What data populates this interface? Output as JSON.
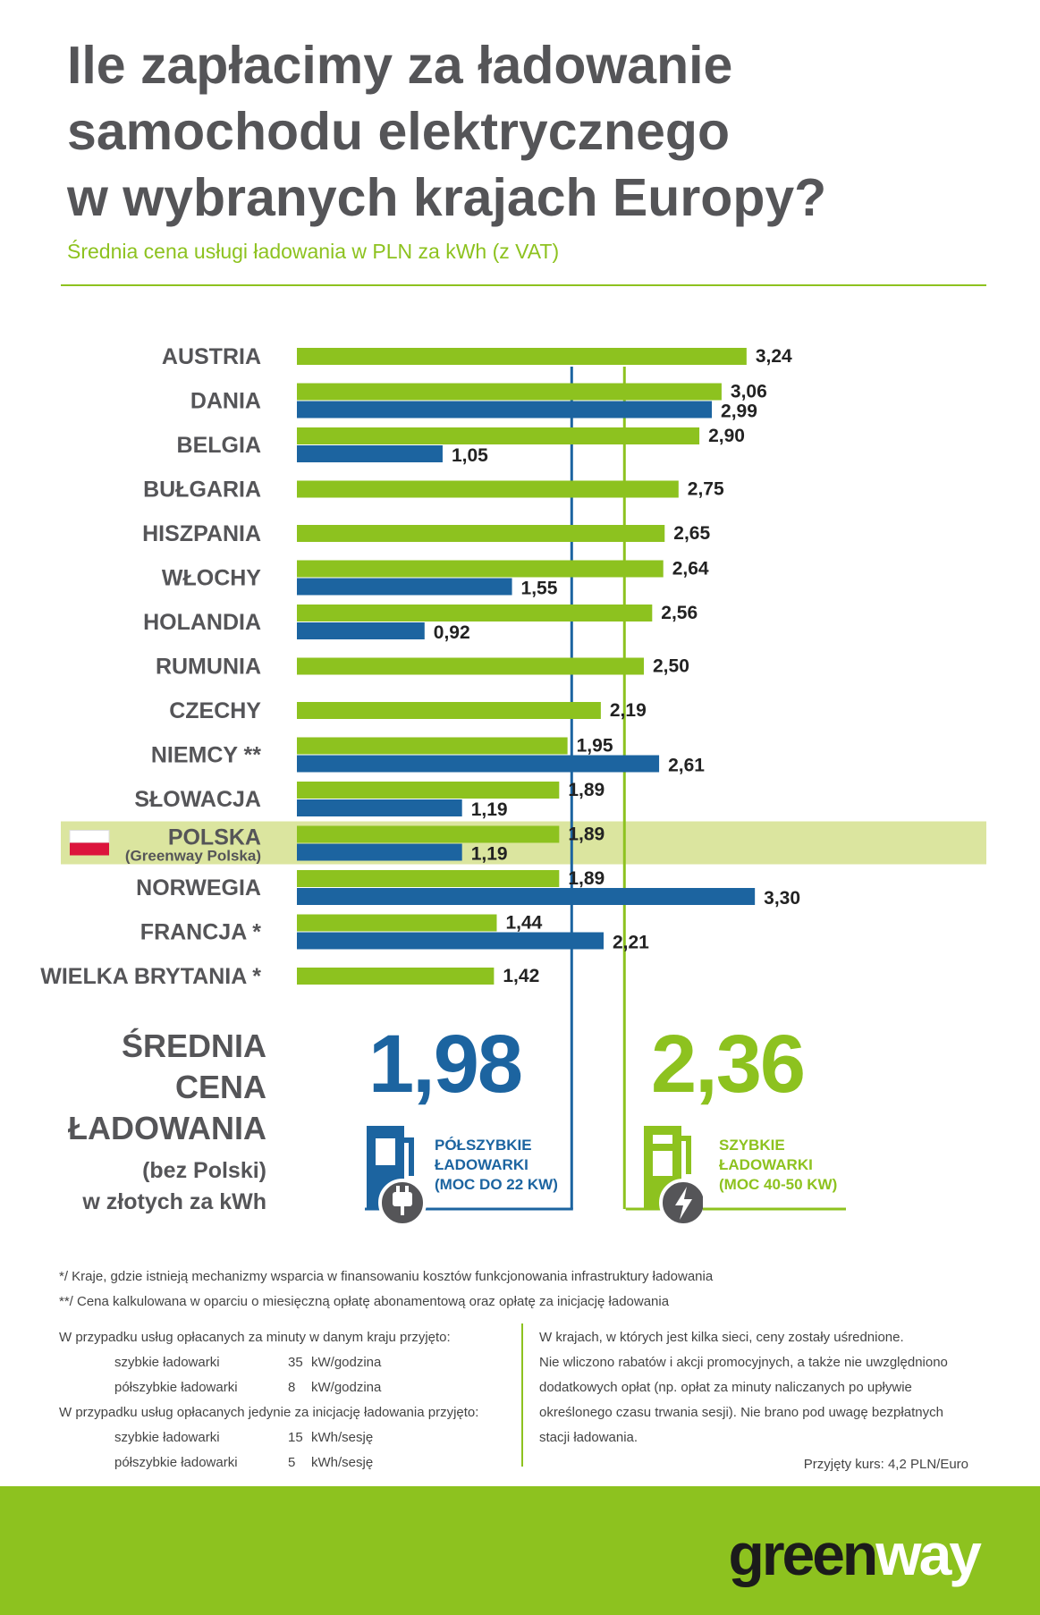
{
  "title_lines": [
    "Ile zapłacimy za ładowanie",
    "samochodu elektrycznego",
    "w wybranych krajach Europy?"
  ],
  "subtitle": "Średnia cena usługi ładowania w PLN za kWh (z VAT)",
  "chart_data": {
    "type": "bar",
    "orientation": "horizontal",
    "title": "Ile zapłacimy za ładowanie samochodu elektrycznego w wybranych krajach Europy?",
    "subtitle": "Średnia cena usługi ładowania w PLN za kWh (z VAT)",
    "categories": [
      "AUSTRIA",
      "DANIA",
      "BELGIA",
      "BUŁGARIA",
      "HISZPANIA",
      "WŁOCHY",
      "HOLANDIA",
      "RUMUNIA",
      "CZECHY",
      "NIEMCY **",
      "SŁOWACJA",
      "POLSKA",
      "NORWEGIA",
      "FRANCJA *",
      "WIELKA BRYTANIA *"
    ],
    "highlight": {
      "category": "POLSKA",
      "sublabel": "(Greenway Polska)"
    },
    "series": [
      {
        "name": "SZYBKIE ŁADOWARKI (MOC 40-50 KW)",
        "color": "#8dc21f",
        "values": [
          3.24,
          3.06,
          2.9,
          2.75,
          2.65,
          2.64,
          2.56,
          2.5,
          2.19,
          1.95,
          1.89,
          1.89,
          1.89,
          1.44,
          1.42
        ],
        "labels": [
          "3,24",
          "3,06",
          "2,90",
          "2,75",
          "2,65",
          "2,64",
          "2,56",
          "2,50",
          "2,19",
          "1,95",
          "1,89",
          "1,89",
          "1,89",
          "1,44",
          "1,42"
        ]
      },
      {
        "name": "PÓŁSZYBKIE ŁADOWARKI (MOC DO 22 KW)",
        "color": "#1c64a0",
        "values": [
          null,
          2.99,
          1.05,
          null,
          null,
          1.55,
          0.92,
          null,
          null,
          2.61,
          1.19,
          1.19,
          3.3,
          2.21,
          null
        ],
        "labels": [
          null,
          "2,99",
          "1,05",
          null,
          null,
          "1,55",
          "0,92",
          null,
          null,
          "2,61",
          "1,19",
          "1,19",
          "3,30",
          "2,21",
          null
        ]
      }
    ],
    "reference_lines": [
      {
        "series": "PÓŁSZYBKIE ŁADOWARKI (MOC DO 22 KW)",
        "value": 1.98
      },
      {
        "series": "SZYBKIE ŁADOWARKI (MOC 40-50 KW)",
        "value": 2.36
      }
    ],
    "xlim": [
      0,
      3.3
    ],
    "grid": false
  },
  "average": {
    "label_lines": [
      "ŚREDNIA",
      "CENA",
      "ŁADOWANIA"
    ],
    "sub_lines": [
      "(bez Polski)",
      "w złotych za kWh"
    ],
    "slow_value": "1,98",
    "slow_desc": [
      "PÓŁSZYBKIE",
      "ŁADOWARKI",
      "(MOC DO 22 KW)"
    ],
    "fast_value": "2,36",
    "fast_desc": [
      "SZYBKIE",
      "ŁADOWARKI",
      "(MOC 40-50 KW)"
    ],
    "slow_icon": "ac-charger-plug-icon",
    "fast_icon": "dc-charger-bolt-icon"
  },
  "footnotes": [
    "*/   Kraje, gdzie istnieją mechanizmy wsparcia  w finansowaniu kosztów funkcjonowania infrastruktury ładowania",
    "**/ Cena kalkulowana w oparciu o miesięczną opłatę abonamentową oraz opłatę za inicjację ładowania"
  ],
  "notes_left": {
    "minutes_intro": "W przypadku usług opłacanych za minuty w danym kraju przyjęto:",
    "minutes_rows": [
      {
        "type": "szybkie ładowarki",
        "value": "35",
        "unit": "kW/godzina"
      },
      {
        "type": "półszybkie ładowarki",
        "value": "8",
        "unit": "kW/godzina"
      }
    ],
    "session_intro": "W przypadku usług opłacanych jedynie za inicjację ładowania przyjęto:",
    "session_rows": [
      {
        "type": "szybkie ładowarki",
        "value": "15",
        "unit": "kWh/sesję"
      },
      {
        "type": "półszybkie ładowarki",
        "value": "5",
        "unit": "kWh/sesję"
      }
    ]
  },
  "notes_right": {
    "lines": [
      "W krajach, w których jest kilka sieci, ceny zostały uśrednione.",
      "Nie wliczono rabatów i akcji promocyjnych, a także nie uwzględniono",
      "dodatkowych opłat (np. opłat za minuty naliczanych po upływie",
      "określonego czasu trwania sesji). Nie brano pod uwagę bezpłatnych",
      "stacji ładowania."
    ],
    "exchange_rate": "Przyjęty kurs: 4,2 PLN/Euro"
  },
  "logo": {
    "part1": "green",
    "part2": "way"
  },
  "colors": {
    "green": "#8dc21f",
    "blue": "#1c64a0",
    "highlight": "#dbe59f",
    "text": "#555558"
  }
}
